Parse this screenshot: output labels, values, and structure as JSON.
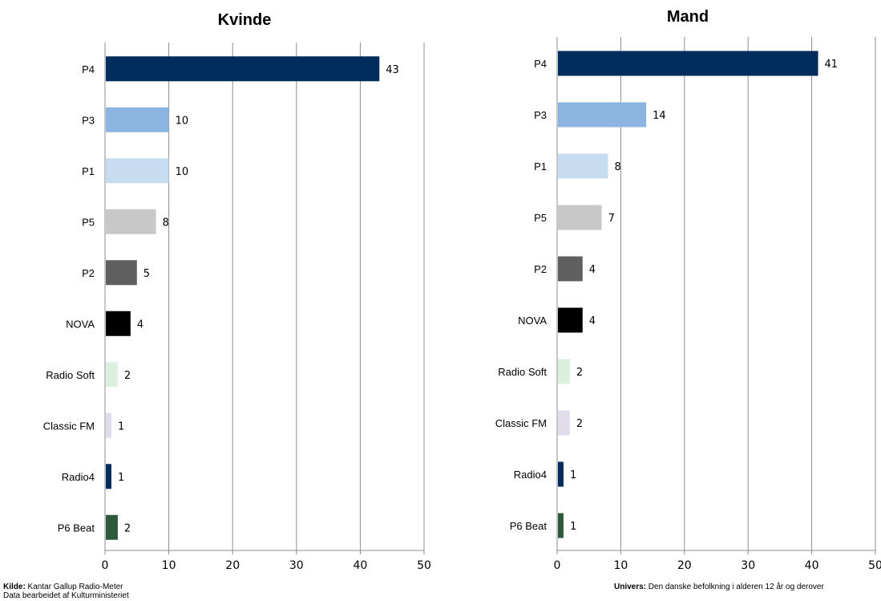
{
  "chart_data": [
    {
      "type": "bar",
      "orientation": "horizontal",
      "title": "Kvinde",
      "categories": [
        "P4",
        "P3",
        "P1",
        "P5",
        "P2",
        "NOVA",
        "Radio Soft",
        "Classic FM",
        "Radio4",
        "P6 Beat"
      ],
      "values": [
        43,
        10,
        10,
        8,
        5,
        4,
        2,
        1,
        1,
        2
      ],
      "colors": [
        "#002d5c",
        "#8cb4e0",
        "#c8dcf0",
        "#c8c8c8",
        "#5f5f5f",
        "#000000",
        "#dcf0e0",
        "#e0dcec",
        "#002d5c",
        "#2d5a3a"
      ],
      "xlim": [
        0,
        50
      ],
      "xticks": [
        0,
        10,
        20,
        30,
        40,
        50
      ],
      "grid": true
    },
    {
      "type": "bar",
      "orientation": "horizontal",
      "title": "Mand",
      "categories": [
        "P4",
        "P3",
        "P1",
        "P5",
        "P2",
        "NOVA",
        "Radio Soft",
        "Classic FM",
        "Radio4",
        "P6 Beat"
      ],
      "values": [
        41,
        14,
        8,
        7,
        4,
        4,
        2,
        2,
        1,
        1
      ],
      "colors": [
        "#002d5c",
        "#8cb4e0",
        "#c8dcf0",
        "#c8c8c8",
        "#5f5f5f",
        "#000000",
        "#dcf0e0",
        "#e0dcec",
        "#002d5c",
        "#2d5a3a"
      ],
      "xlim": [
        0,
        50
      ],
      "xticks": [
        0,
        10,
        20,
        30,
        40,
        50
      ],
      "grid": true
    }
  ],
  "footer": {
    "source_lead": "Kilde:",
    "source_text": " Kantar Gallup Radio-Meter",
    "source_line2": "Data bearbeidet af Kulturministeriet",
    "universe_lead": "Univers:",
    "universe_text": " Den danske befolkning i alderen 12 år og derover"
  }
}
